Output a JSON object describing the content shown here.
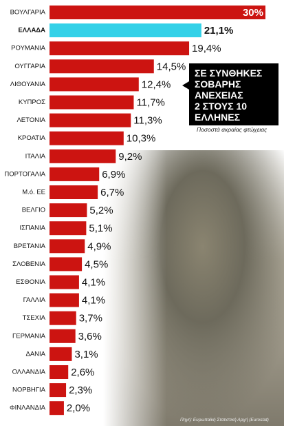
{
  "headline": {
    "lines": [
      "ΣΕ ΣΥΝΘΗΚΕΣ",
      "ΣΟΒΑΡΗΣ",
      "ΑΝΕΧΕΙΑΣ",
      "2 ΣΤΟΥΣ 10",
      "ΕΛΛΗΝΕΣ"
    ],
    "subtitle": "Ποσοστά ακραίας φτώχειας"
  },
  "photo_credit": "Πηγή: Ευρωπαϊκή Στατιστική Αρχή (Eurostat)",
  "colors": {
    "bar": "#cc1411",
    "highlight": "#33d1e8"
  },
  "chart_data": {
    "type": "bar",
    "orientation": "horizontal",
    "categories": [
      "ΒΟΥΛΓΑΡΙΑ",
      "ΕΛΛΑΔΑ",
      "ΡΟΥΜΑΝΙΑ",
      "ΟΥΓΓΑΡΙΑ",
      "ΛΙΘΟΥΑΝΙΑ",
      "ΚΥΠΡΟΣ",
      "ΛΕΤΟΝΙΑ",
      "ΚΡΟΑΤΙΑ",
      "ΙΤΑΛΙΑ",
      "ΠΟΡΤΟΓΑΛΙΑ",
      "Μ.ό. ΕΕ",
      "ΒΕΛΓΙΟ",
      "ΙΣΠΑΝΙΑ",
      "ΒΡΕΤΑΝΙΑ",
      "ΣΛΟΒΕΝΙΑ",
      "ΕΣΘΟΝΙΑ",
      "ΓΑΛΛΙΑ",
      "ΤΣΕΧΙΑ",
      "ΓΕΡΜΑΝΙΑ",
      "ΔΑΝΙΑ",
      "ΟΛΛΑΝΔΙΑ",
      "ΝΟΡΒΗΓΙΑ",
      "ΦΙΝΛΑΝΔΙΑ"
    ],
    "values": [
      30,
      21.1,
      19.4,
      14.5,
      12.4,
      11.7,
      11.3,
      10.3,
      9.2,
      6.9,
      6.7,
      5.2,
      5.1,
      4.9,
      4.5,
      4.1,
      4.1,
      3.7,
      3.6,
      3.1,
      2.6,
      2.3,
      2.0
    ],
    "labels": [
      "30%",
      "21,1%",
      "19,4%",
      "14,5%",
      "12,4%",
      "11,7%",
      "11,3%",
      "10,3%",
      "9,2%",
      "6,9%",
      "6,7%",
      "5,2%",
      "5,1%",
      "4,9%",
      "4,5%",
      "4,1%",
      "4,1%",
      "3,7%",
      "3,6%",
      "3,1%",
      "2,6%",
      "2,3%",
      "2,0%"
    ],
    "highlight_category": "ΕΛΛΑΔΑ",
    "xlim": [
      0,
      30
    ],
    "unit": "%"
  }
}
